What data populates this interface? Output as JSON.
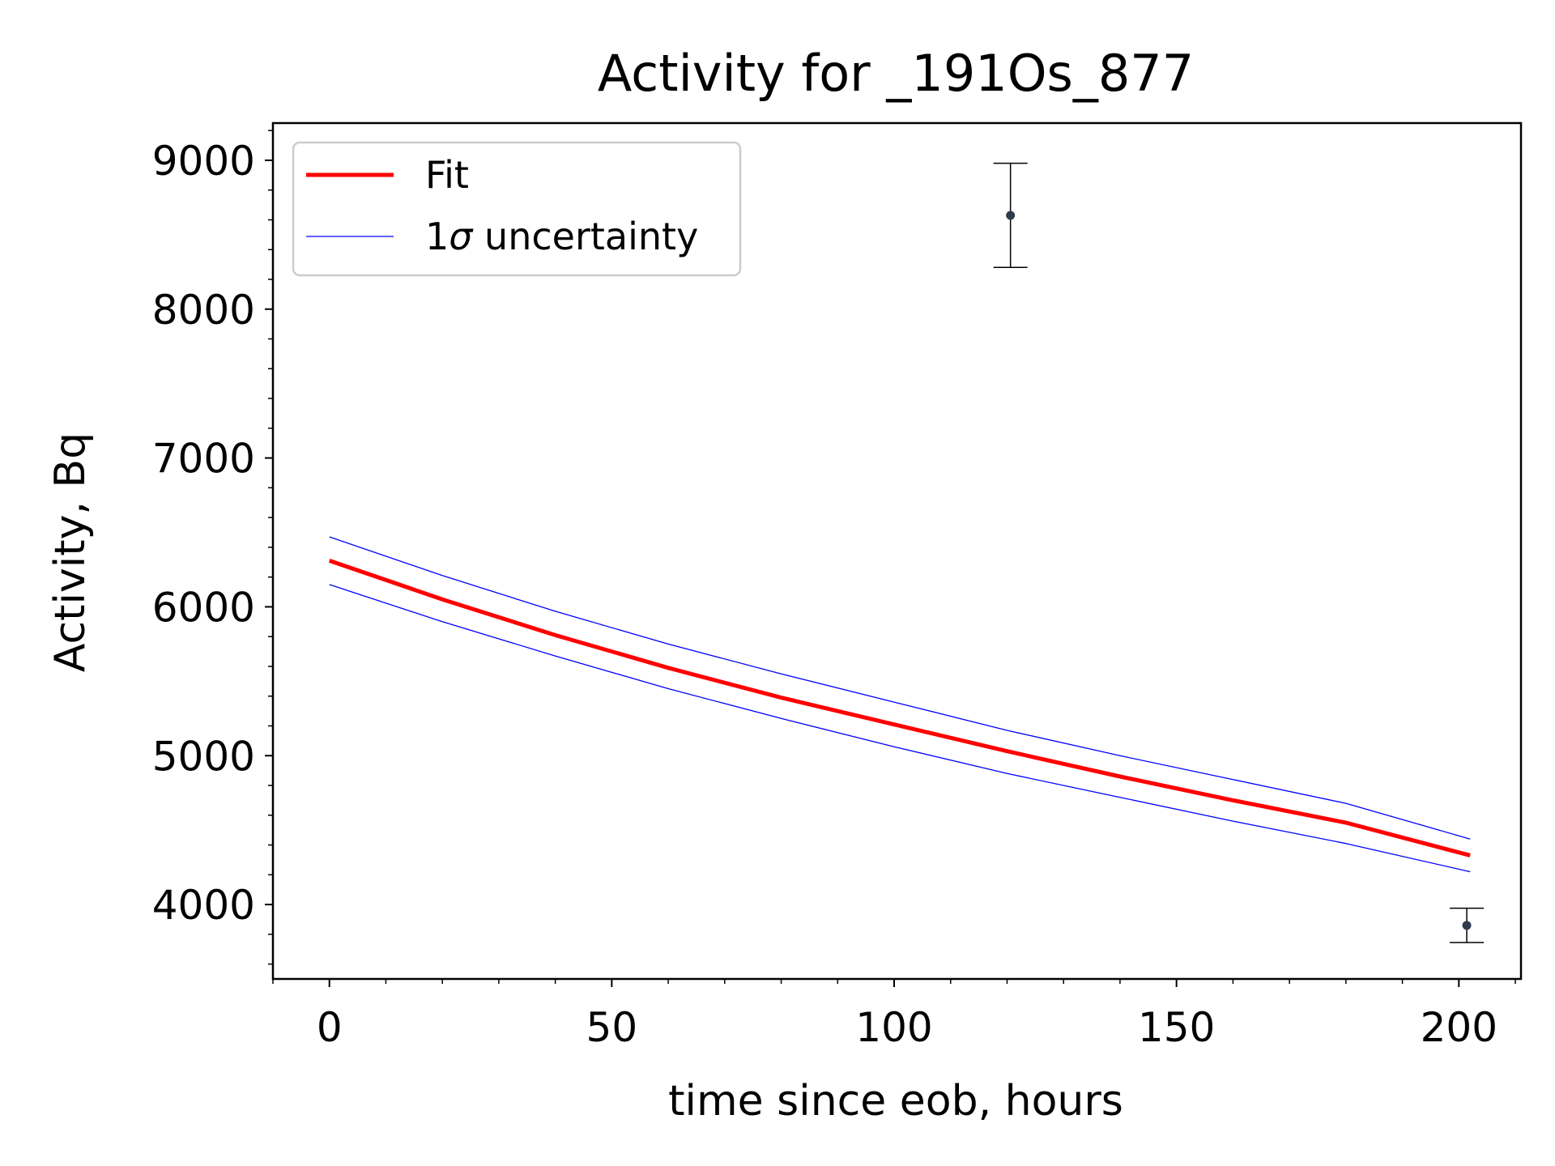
{
  "chart_data": {
    "type": "line",
    "title": "Activity for _191Os_877",
    "xlabel": "time since eob, hours",
    "ylabel": "Activity, Bq",
    "xlim": [
      -10,
      211
    ],
    "ylim": [
      3500,
      9250
    ],
    "xticks": [
      0,
      50,
      100,
      150,
      200
    ],
    "yticks": [
      4000,
      5000,
      6000,
      7000,
      8000,
      9000
    ],
    "grid": false,
    "legend_position": "upper-left",
    "legend": {
      "fit_label": "Fit",
      "uncertainty_label_prefix": "1",
      "uncertainty_label_symbol": "σ",
      "uncertainty_label_suffix": " uncertainty"
    },
    "series": [
      {
        "name": "Fit",
        "color": "#ff0000",
        "x": [
          0,
          20,
          40,
          60,
          80,
          100,
          120,
          140,
          160,
          180,
          202
        ],
        "y": [
          6310,
          6050,
          5810,
          5590,
          5390,
          5210,
          5030,
          4860,
          4700,
          4550,
          4330
        ]
      },
      {
        "name": "1σ uncertainty",
        "color": "#0000ff",
        "x": [
          0,
          20,
          40,
          60,
          80,
          100,
          120,
          140,
          160,
          180,
          202
        ],
        "y": [
          6470,
          6210,
          5970,
          5750,
          5550,
          5360,
          5170,
          5000,
          4840,
          4680,
          4440
        ]
      },
      {
        "name": "1σ uncertainty lower",
        "color": "#0000ff",
        "x": [
          0,
          20,
          40,
          60,
          80,
          100,
          120,
          140,
          160,
          180,
          202
        ],
        "y": [
          6150,
          5900,
          5670,
          5450,
          5250,
          5060,
          4880,
          4720,
          4560,
          4410,
          4220
        ]
      }
    ],
    "measurements": [
      {
        "x": 120.6,
        "y": 8630,
        "yerr": 350
      },
      {
        "x": 201.4,
        "y": 3860,
        "yerr": 115
      }
    ],
    "marker_color": "#303a4f"
  }
}
